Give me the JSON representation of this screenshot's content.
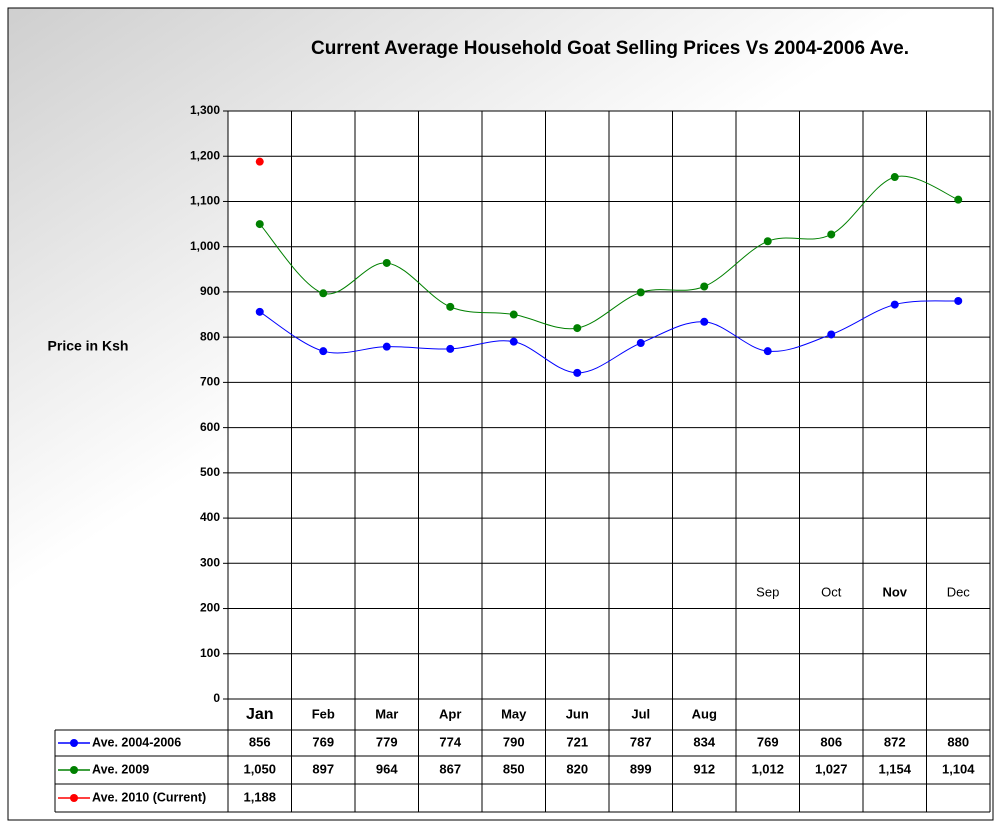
{
  "chart_data": {
    "type": "line",
    "title": "Current Average  Household Goat Selling Prices Vs 2004-2006 Ave.",
    "y_label": "Price in Ksh",
    "categories": [
      "Jan",
      "Feb",
      "Mar",
      "Apr",
      "May",
      "Jun",
      "Jul",
      "Aug",
      "Sep",
      "Oct",
      "Nov",
      "Dec"
    ],
    "series": [
      {
        "name": "Ave. 2004-2006",
        "color": "#0000ff",
        "values": [
          856,
          769,
          779,
          774,
          790,
          721,
          787,
          834,
          769,
          806,
          872,
          880
        ]
      },
      {
        "name": "Ave. 2009",
        "color": "#008000",
        "values": [
          1050,
          897,
          964,
          867,
          850,
          820,
          899,
          912,
          1012,
          1027,
          1154,
          1104
        ],
        "value_labels": [
          "1,050",
          "897",
          "964",
          "867",
          "850",
          "820",
          "899",
          "912",
          "1,012",
          "1,027",
          "1,154",
          "1,104"
        ]
      },
      {
        "name": "Ave. 2010 (Current)",
        "color": "#ff0000",
        "values": [
          1188,
          null,
          null,
          null,
          null,
          null,
          null,
          null,
          null,
          null,
          null,
          null
        ],
        "value_labels": [
          "1,188",
          null,
          null,
          null,
          null,
          null,
          null,
          null,
          null,
          null,
          null,
          null
        ]
      }
    ],
    "ylim": [
      0,
      1300
    ],
    "yticks": [
      0,
      100,
      200,
      300,
      400,
      500,
      600,
      700,
      800,
      900,
      {
        "value": 1000,
        "label": "1,000"
      },
      {
        "value": 1100,
        "label": "1,100"
      },
      {
        "value": 1200,
        "label": "1,200"
      },
      {
        "value": 1300,
        "label": "1,300"
      }
    ],
    "grid": true
  }
}
